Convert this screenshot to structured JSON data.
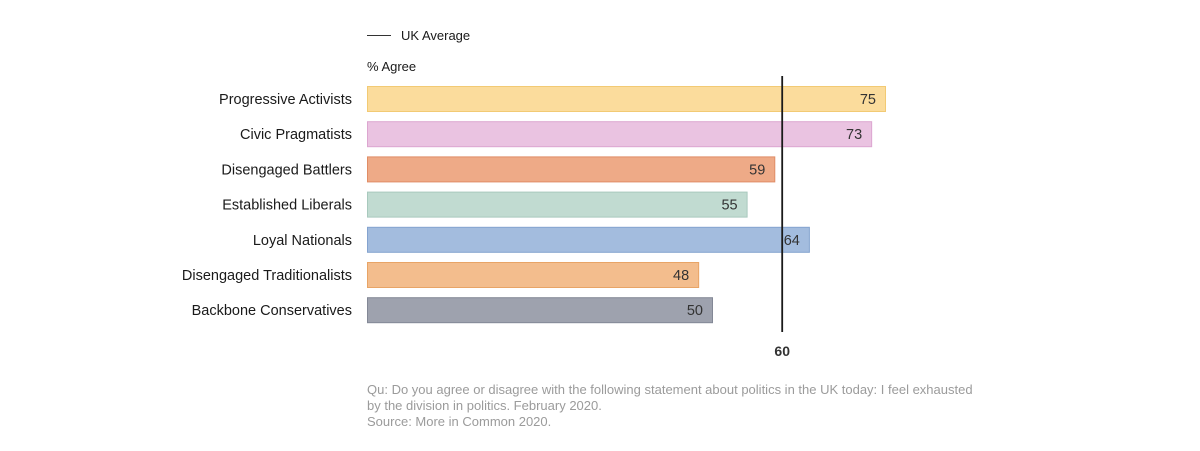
{
  "chart_data": {
    "type": "bar",
    "orientation": "horizontal",
    "unit_label": "% Agree",
    "categories": [
      "Progressive Activists",
      "Civic Pragmatists",
      "Disengaged Battlers",
      "Established Liberals",
      "Loyal Nationals",
      "Disengaged Traditionalists",
      "Backbone Conservatives"
    ],
    "values": [
      75,
      73,
      59,
      55,
      64,
      48,
      50
    ],
    "colors": [
      "#fbdc9c",
      "#eac3e1",
      "#eeaa87",
      "#c1dbd1",
      "#a3bcde",
      "#f3bd8d",
      "#9ea2ae"
    ],
    "border_colors": [
      "#f2ca74",
      "#dca6d0",
      "#e08d66",
      "#a8c9bd",
      "#84a3cf",
      "#e8a466",
      "#838896"
    ],
    "reference_line": {
      "label": "UK Average",
      "value": 60,
      "tick_label": "60",
      "color": "#1a1a1a"
    },
    "xlim": [
      0,
      100
    ],
    "grid": false,
    "legend_position": "top-left"
  },
  "notes": {
    "question": "Qu: Do you agree or disagree with the following statement about politics in the UK today: I feel exhausted",
    "question_cont": "by the division in politics. February 2020.",
    "source": "Source: More in Common 2020."
  }
}
